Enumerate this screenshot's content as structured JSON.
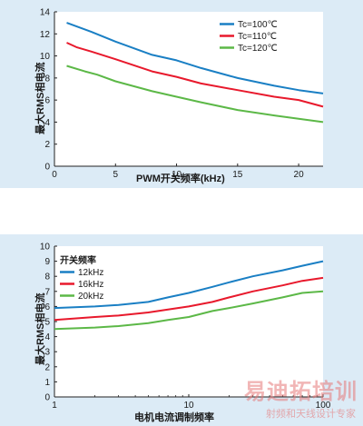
{
  "chart_data": [
    {
      "type": "line",
      "ylabel": "最大RMS相电流",
      "xlabel": "PWM开关频率(kHz)",
      "xlim": [
        0,
        22
      ],
      "ylim": [
        0,
        14
      ],
      "xticks": [
        0,
        5,
        10,
        15,
        20
      ],
      "yticks": [
        0,
        2,
        4,
        6,
        8,
        10,
        12,
        14
      ],
      "x_scale": "linear",
      "grid": false,
      "legend_position": "top-right",
      "series": [
        {
          "name": "Tc=100℃",
          "color": "#1a7fc4",
          "x": [
            1,
            3,
            5,
            8,
            10,
            12,
            15,
            18,
            20,
            22
          ],
          "y": [
            13.0,
            12.2,
            11.3,
            10.1,
            9.6,
            8.9,
            8.0,
            7.3,
            6.9,
            6.6
          ]
        },
        {
          "name": "Tc=110℃",
          "color": "#e8192c",
          "x": [
            1,
            1.8,
            3,
            5,
            8,
            10,
            12,
            15,
            18,
            20,
            22
          ],
          "y": [
            11.2,
            10.8,
            10.4,
            9.7,
            8.6,
            8.1,
            7.5,
            6.9,
            6.3,
            6.0,
            5.4
          ]
        },
        {
          "name": "Tc=120℃",
          "color": "#5cb847",
          "x": [
            1,
            2.5,
            3.5,
            5,
            8,
            10,
            12,
            15,
            18,
            20,
            22
          ],
          "y": [
            9.1,
            8.6,
            8.3,
            7.7,
            6.8,
            6.3,
            5.8,
            5.1,
            4.6,
            4.3,
            4.0
          ]
        }
      ]
    },
    {
      "type": "line",
      "ylabel": "最大RMS相电流",
      "xlabel": "电机电流调制频率",
      "xlim": [
        1,
        100
      ],
      "ylim": [
        0,
        10
      ],
      "xticks": [
        1,
        10,
        100
      ],
      "yticks": [
        0,
        1,
        2,
        3,
        4,
        5,
        6,
        7,
        8,
        9,
        10
      ],
      "x_scale": "log",
      "grid": false,
      "legend_title": "开关频率",
      "legend_position": "top-left",
      "series": [
        {
          "name": "12kHz",
          "color": "#1a7fc4",
          "x": [
            1,
            2,
            3,
            5,
            7,
            10,
            15,
            20,
            30,
            50,
            70,
            100
          ],
          "y": [
            5.9,
            6.0,
            6.1,
            6.3,
            6.6,
            6.9,
            7.3,
            7.6,
            8.0,
            8.4,
            8.7,
            9.0
          ]
        },
        {
          "name": "16kHz",
          "color": "#e8192c",
          "x": [
            1,
            2,
            3,
            5,
            7,
            10,
            15,
            20,
            30,
            50,
            70,
            100
          ],
          "y": [
            5.1,
            5.3,
            5.4,
            5.6,
            5.8,
            6.0,
            6.3,
            6.6,
            7.0,
            7.4,
            7.7,
            7.9
          ]
        },
        {
          "name": "20kHz",
          "color": "#5cb847",
          "x": [
            1,
            2,
            3,
            5,
            7,
            10,
            15,
            20,
            30,
            50,
            70,
            100
          ],
          "y": [
            4.5,
            4.6,
            4.7,
            4.9,
            5.1,
            5.3,
            5.7,
            5.9,
            6.2,
            6.6,
            6.9,
            7.0
          ]
        }
      ]
    }
  ],
  "watermark": {
    "main": "易迪拓培训",
    "sub": "射频和天线设计专家"
  }
}
